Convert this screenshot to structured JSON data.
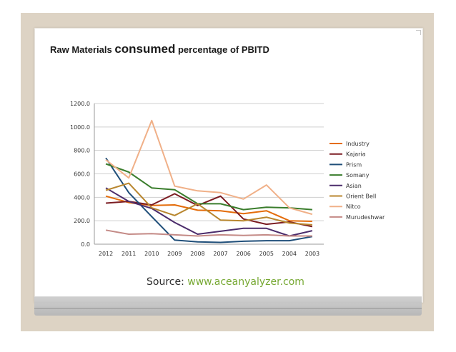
{
  "slide": {
    "title_parts": [
      "Raw Materials ",
      "consumed",
      " percentage of PBITD"
    ],
    "source_label": "Source:",
    "source_link": "www.aceanyalyzer.com"
  },
  "chart_data": {
    "type": "line",
    "title": "",
    "xlabel": "",
    "ylabel": "",
    "categories": [
      "2012",
      "2011",
      "2010",
      "2009",
      "2008",
      "2007",
      "2006",
      "2005",
      "2004",
      "2003"
    ],
    "ylim": [
      0,
      1200
    ],
    "yticks": [
      "0.0",
      "200.0",
      "400.0",
      "600.0",
      "800.0",
      "1000.0",
      "1200.0"
    ],
    "grid": true,
    "legend_position": "right",
    "series": [
      {
        "name": "Industry",
        "color": "#e46c0a",
        "values": [
          410,
          355,
          330,
          335,
          290,
          285,
          260,
          285,
          200,
          195
        ]
      },
      {
        "name": "Kajaria",
        "color": "#7b1c22",
        "values": [
          350,
          365,
          335,
          430,
          330,
          410,
          215,
          170,
          190,
          150
        ]
      },
      {
        "name": "Prism",
        "color": "#1f4e79",
        "values": [
          735,
          440,
          235,
          35,
          20,
          15,
          25,
          30,
          30,
          65
        ]
      },
      {
        "name": "Somany",
        "color": "#3a7d2c",
        "values": [
          685,
          615,
          480,
          465,
          345,
          345,
          295,
          315,
          310,
          295
        ]
      },
      {
        "name": "Asian",
        "color": "#4b2c6b",
        "values": [
          480,
          365,
          305,
          185,
          85,
          110,
          135,
          135,
          70,
          115
        ]
      },
      {
        "name": "Orient Bell",
        "color": "#b8862e",
        "values": [
          460,
          520,
          310,
          245,
          345,
          205,
          200,
          230,
          180,
          165
        ]
      },
      {
        "name": "Nitco",
        "color": "#f0b088",
        "values": [
          720,
          565,
          1055,
          495,
          455,
          440,
          385,
          505,
          310,
          255
        ]
      },
      {
        "name": "Murudeshwar",
        "color": "#c48a86",
        "values": [
          120,
          85,
          90,
          80,
          70,
          80,
          75,
          80,
          70,
          70
        ]
      }
    ]
  }
}
